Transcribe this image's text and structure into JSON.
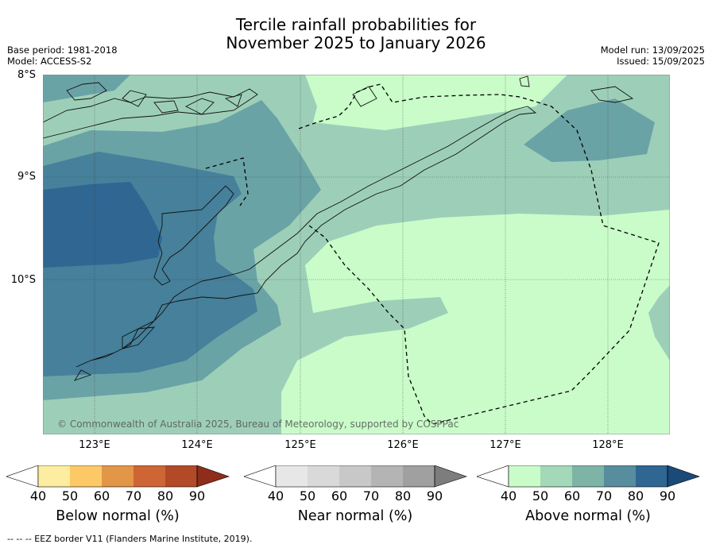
{
  "title": {
    "line1": "Tercile rainfall probabilities for",
    "line2": "November 2025 to January 2026"
  },
  "meta": {
    "base_period": "Base period: 1981-2018",
    "model": "Model: ACCESS-S2",
    "model_run": "Model run: 13/09/2025",
    "issued": "Issued: 15/09/2025"
  },
  "map": {
    "lat_labels": [
      "8°S",
      "9°S",
      "10°S"
    ],
    "lon_labels": [
      "123°E",
      "124°E",
      "125°E",
      "126°E",
      "127°E",
      "128°E"
    ],
    "credit": "© Commonwealth of Australia 2025, Bureau of Meteorology, supported by COSPPac",
    "colors": {
      "above_40_50": "#c9fcc9",
      "above_50_60": "#9dcfb8",
      "above_60_70": "#6aa3a6",
      "above_70_80": "#46809a",
      "above_80_90": "#2f6692"
    }
  },
  "legends": [
    {
      "label": "Below normal (%)",
      "ticks": [
        "40",
        "50",
        "60",
        "70",
        "80",
        "90"
      ],
      "colors": [
        "#ffffff",
        "#fdeda0",
        "#fdc967",
        "#e29648",
        "#cd6534",
        "#b24a28",
        "#8e2d1a"
      ]
    },
    {
      "label": "Near normal (%)",
      "ticks": [
        "40",
        "50",
        "60",
        "70",
        "80",
        "90"
      ],
      "colors": [
        "#ffffff",
        "#e7e7e7",
        "#d9d9d9",
        "#c8c8c8",
        "#b4b4b4",
        "#a0a0a0",
        "#7d7d7d"
      ]
    },
    {
      "label": "Above normal (%)",
      "ticks": [
        "40",
        "50",
        "60",
        "70",
        "80",
        "90"
      ],
      "colors": [
        "#ffffff",
        "#c9fcc9",
        "#a3d8b8",
        "#7eb4a6",
        "#588d9e",
        "#2f6692",
        "#1a4a78"
      ]
    }
  ],
  "footnote": "-- -- -- EEZ border V11 (Flanders Marine Institute, 2019)."
}
